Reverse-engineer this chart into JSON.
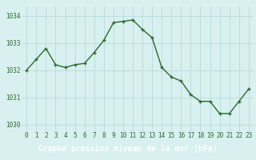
{
  "x": [
    0,
    1,
    2,
    3,
    4,
    5,
    6,
    7,
    8,
    9,
    10,
    11,
    12,
    13,
    14,
    15,
    16,
    17,
    18,
    19,
    20,
    21,
    22,
    23
  ],
  "y": [
    1032.0,
    1032.4,
    1032.8,
    1032.2,
    1032.1,
    1032.2,
    1032.25,
    1032.65,
    1033.1,
    1033.75,
    1033.8,
    1033.85,
    1033.5,
    1033.2,
    1032.1,
    1031.75,
    1031.6,
    1031.1,
    1030.85,
    1030.85,
    1030.4,
    1030.4,
    1030.85,
    1031.3
  ],
  "line_color": "#2d6a2d",
  "marker": "+",
  "bg_color": "#d8f0f0",
  "grid_color": "#b8dada",
  "label_bar_color": "#2d6a2d",
  "xlabel": "Graphe pression niveau de la mer (hPa)",
  "xlabel_text_color": "#ffffff",
  "ylim_min": 1029.75,
  "ylim_max": 1034.35,
  "yticks": [
    1030,
    1031,
    1032,
    1033,
    1034
  ],
  "xticks": [
    0,
    1,
    2,
    3,
    4,
    5,
    6,
    7,
    8,
    9,
    10,
    11,
    12,
    13,
    14,
    15,
    16,
    17,
    18,
    19,
    20,
    21,
    22,
    23
  ],
  "tick_fontsize": 5.5,
  "tick_color": "#2d6a2d",
  "linewidth": 1.0,
  "markersize": 3.5,
  "markeredgewidth": 1.0
}
